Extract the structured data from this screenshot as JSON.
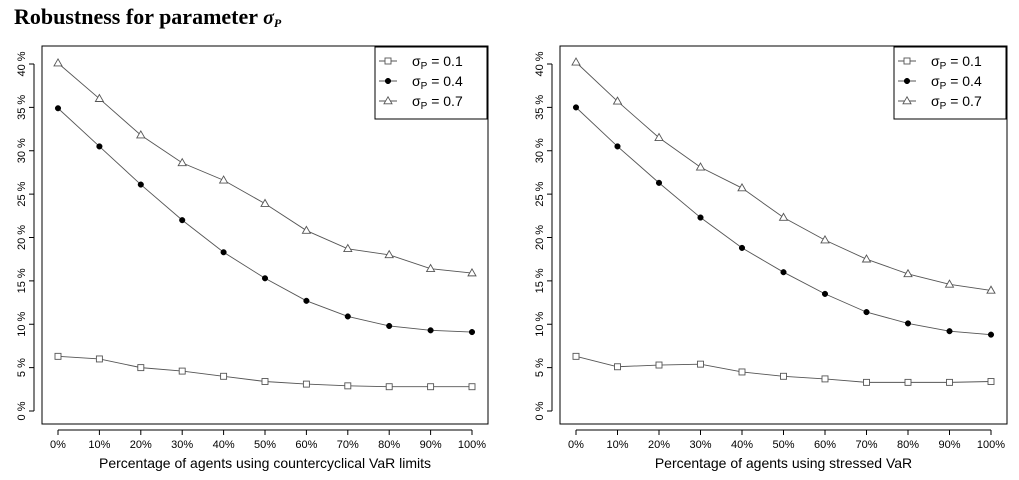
{
  "title": {
    "main": "Robustness for parameter ",
    "symbol": "σ",
    "subscript": "P"
  },
  "chart_data": [
    {
      "type": "line",
      "categories": [
        "0%",
        "10%",
        "20%",
        "30%",
        "40%",
        "50%",
        "60%",
        "70%",
        "80%",
        "90%",
        "100%"
      ],
      "xlabel": "Percentage of agents using countercyclical VaR limits",
      "ylabel": "",
      "ylim": [
        0,
        40
      ],
      "yticks": [
        "0 %",
        "5 %",
        "10 %",
        "15 %",
        "20 %",
        "25 %",
        "30 %",
        "35 %",
        "40 %"
      ],
      "grid": false,
      "legend_position": "top-right",
      "series": [
        {
          "name": "σP = 0.1",
          "legend_symbol": "σ",
          "legend_sub": "P",
          "legend_value": " = 0.1",
          "marker": "square",
          "values": [
            6.3,
            6.0,
            5.0,
            4.6,
            4.0,
            3.4,
            3.1,
            2.9,
            2.8,
            2.8,
            2.8
          ]
        },
        {
          "name": "σP = 0.4",
          "legend_symbol": "σ",
          "legend_sub": "P",
          "legend_value": " = 0.4",
          "marker": "circle",
          "values": [
            34.9,
            30.5,
            26.1,
            22.0,
            18.3,
            15.3,
            12.7,
            10.9,
            9.8,
            9.3,
            9.1
          ]
        },
        {
          "name": "σP = 0.7",
          "legend_symbol": "σ",
          "legend_sub": "P",
          "legend_value": " = 0.7",
          "marker": "triangle",
          "values": [
            40.1,
            36.0,
            31.8,
            28.6,
            26.6,
            23.9,
            20.8,
            18.7,
            18.0,
            16.4,
            15.9
          ]
        }
      ]
    },
    {
      "type": "line",
      "categories": [
        "0%",
        "10%",
        "20%",
        "30%",
        "40%",
        "50%",
        "60%",
        "70%",
        "80%",
        "90%",
        "100%"
      ],
      "xlabel": "Percentage of agents using stressed VaR",
      "ylabel": "",
      "ylim": [
        0,
        40
      ],
      "yticks": [
        "0 %",
        "5 %",
        "10 %",
        "15 %",
        "20 %",
        "25 %",
        "30 %",
        "35 %",
        "40 %"
      ],
      "grid": false,
      "legend_position": "top-right",
      "series": [
        {
          "name": "σP = 0.1",
          "legend_symbol": "σ",
          "legend_sub": "P",
          "legend_value": " = 0.1",
          "marker": "square",
          "values": [
            6.3,
            5.1,
            5.3,
            5.4,
            4.5,
            4.0,
            3.7,
            3.3,
            3.3,
            3.3,
            3.4
          ]
        },
        {
          "name": "σP = 0.4",
          "legend_symbol": "σ",
          "legend_sub": "P",
          "legend_value": " = 0.4",
          "marker": "circle",
          "values": [
            35.0,
            30.5,
            26.3,
            22.3,
            18.8,
            16.0,
            13.5,
            11.4,
            10.1,
            9.2,
            8.8
          ]
        },
        {
          "name": "σP = 0.7",
          "legend_symbol": "σ",
          "legend_sub": "P",
          "legend_value": " = 0.7",
          "marker": "triangle",
          "values": [
            40.2,
            35.7,
            31.5,
            28.1,
            25.7,
            22.3,
            19.7,
            17.5,
            15.8,
            14.6,
            13.9
          ]
        }
      ]
    }
  ]
}
